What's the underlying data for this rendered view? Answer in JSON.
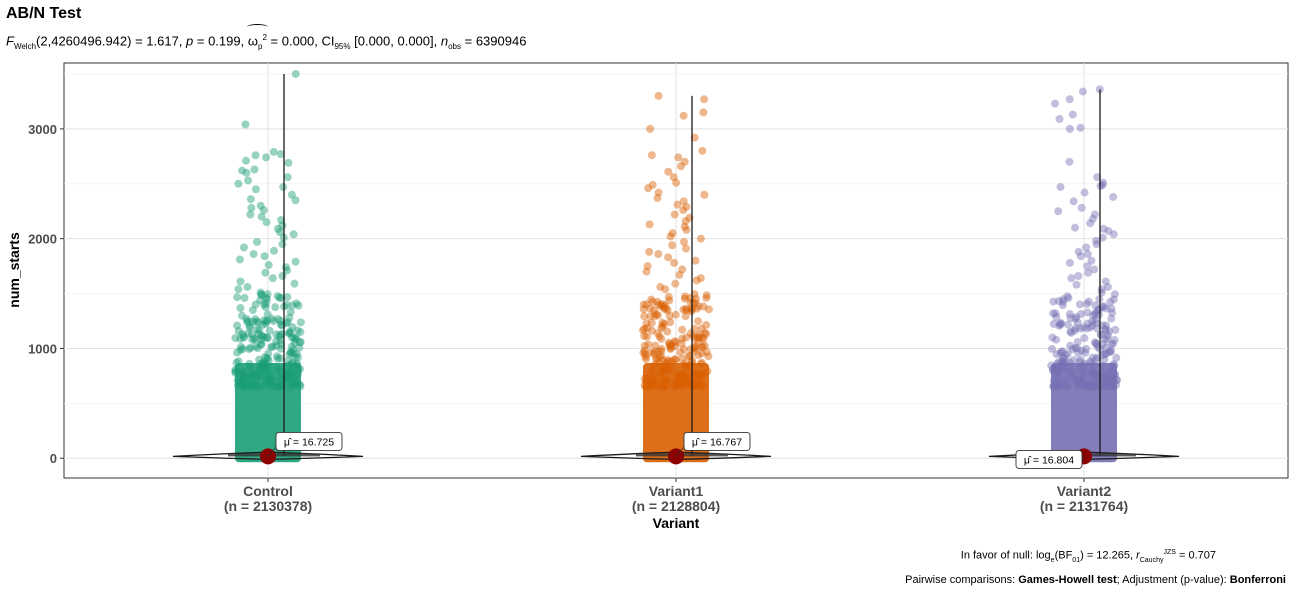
{
  "header": {
    "title": "AB/N Test",
    "subtitle_parts": {
      "F": "F",
      "F_sub": "Welch",
      "F_args": "(2,4260496.942) = 1.617, ",
      "p_label": "p",
      "p_value": " = 0.199, ",
      "omega": "ω",
      "omega_sub": "p",
      "omega_sup": "2",
      "omega_value": " = 0.000, CI",
      "ci_sub": "95%",
      "ci_value": " [0.000, 0.000], ",
      "n_label": "n",
      "n_sub": "obs",
      "n_value": " = 6390946"
    }
  },
  "caption": {
    "bf_prefix": "In favor of null: log",
    "bf_log_sub": "e",
    "bf_mid": "(BF",
    "bf_sub": "01",
    "bf_value": ") = 12.265, ",
    "r_label": "r",
    "r_sub": "Cauchy",
    "r_sup": "JZS",
    "r_value": " = 0.707",
    "pair_prefix": "Pairwise comparisons: ",
    "pair_test": "Games-Howell test",
    "pair_mid": "; Adjustment (p-value): ",
    "pair_adjust": "Bonferroni"
  },
  "chart_data": {
    "type": "scatter",
    "subtype": "violin + jittered points + mean",
    "xlabel": "Variant",
    "ylabel": "num_starts",
    "ylim": [
      -180,
      3600
    ],
    "yticks": [
      0,
      1000,
      2000,
      3000
    ],
    "grid": true,
    "categories": [
      {
        "name": "Control",
        "n_label": "(n = 2130378)",
        "color": "#1b9e77",
        "mean": 16.725,
        "mean_label": "μ̂ = 16.725",
        "max": 3500,
        "outliers": [
          3500,
          3040,
          2790,
          2770,
          2760,
          2740,
          2710,
          2690,
          2630,
          2620,
          2600,
          2560,
          2530,
          2500,
          2470,
          2450,
          2400,
          2360,
          2350,
          2300,
          2280,
          2260,
          2220,
          2200,
          2170,
          2150,
          2120,
          2090,
          2060,
          2040,
          2010,
          1970,
          1950,
          1920,
          1890,
          1860,
          1840,
          1810,
          1790,
          1760,
          1740,
          1710,
          1690,
          1660,
          1640,
          1610,
          1590,
          1560,
          1540,
          1510,
          1490,
          1460,
          1440,
          1410
        ]
      },
      {
        "name": "Variant1",
        "n_label": "(n = 2128804)",
        "color": "#d95f02",
        "mean": 16.767,
        "mean_label": "μ̂ = 16.767",
        "max": 3300,
        "outliers": [
          3300,
          3270,
          3150,
          3120,
          3000,
          2920,
          2800,
          2760,
          2740,
          2700,
          2660,
          2610,
          2560,
          2510,
          2490,
          2460,
          2420,
          2400,
          2370,
          2340,
          2310,
          2290,
          2260,
          2220,
          2190,
          2160,
          2130,
          2110,
          2080,
          2050,
          2020,
          2000,
          1970,
          1940,
          1910,
          1880,
          1860,
          1830,
          1800,
          1780,
          1750,
          1720,
          1700,
          1670,
          1640,
          1620,
          1590,
          1560,
          1540
        ]
      },
      {
        "name": "Variant2",
        "n_label": "(n = 2131764)",
        "color": "#7570b3",
        "mean": 16.804,
        "mean_label": "μ̂ = 16.804",
        "max": 3360,
        "outliers": [
          3360,
          3340,
          3270,
          3230,
          3130,
          3090,
          3010,
          3000,
          2700,
          2560,
          2510,
          2490,
          2480,
          2470,
          2420,
          2380,
          2340,
          2280,
          2250,
          2220,
          2180,
          2140,
          2100,
          2090,
          2070,
          2040,
          2010,
          1980,
          1950,
          1920,
          1880,
          1860,
          1840,
          1800,
          1780,
          1750,
          1720,
          1690,
          1660,
          1640,
          1610,
          1580,
          1560,
          1540,
          1510
        ]
      }
    ]
  }
}
